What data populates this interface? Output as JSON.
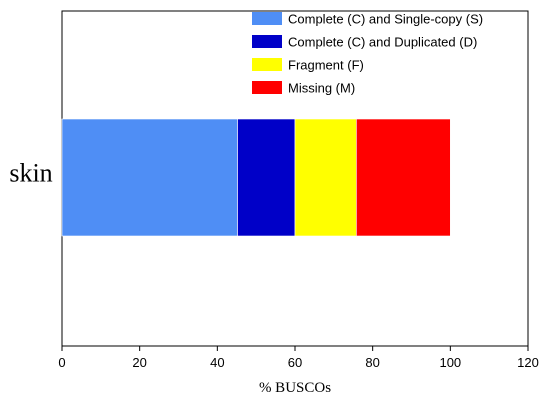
{
  "chart_data": {
    "type": "bar",
    "orientation": "horizontal",
    "stacked": true,
    "categories": [
      "skin"
    ],
    "series": [
      {
        "name": "Complete (C) and Single-copy (S)",
        "values": [
          45.2
        ],
        "color": "#4f8ef5"
      },
      {
        "name": "Complete (C) and Duplicated (D)",
        "values": [
          14.8
        ],
        "color": "#0000c8"
      },
      {
        "name": "Fragment (F)",
        "values": [
          15.8
        ],
        "color": "#ffff00"
      },
      {
        "name": "Missing (M)",
        "values": [
          24.2
        ],
        "color": "#ff0000"
      }
    ],
    "xlabel": "% BUSCOs",
    "ylabel": "",
    "xlim": [
      0,
      120
    ],
    "xticks": [
      "0",
      "20",
      "40",
      "60",
      "80",
      "100",
      "120"
    ],
    "grid": false,
    "legend_position": "top-right"
  }
}
